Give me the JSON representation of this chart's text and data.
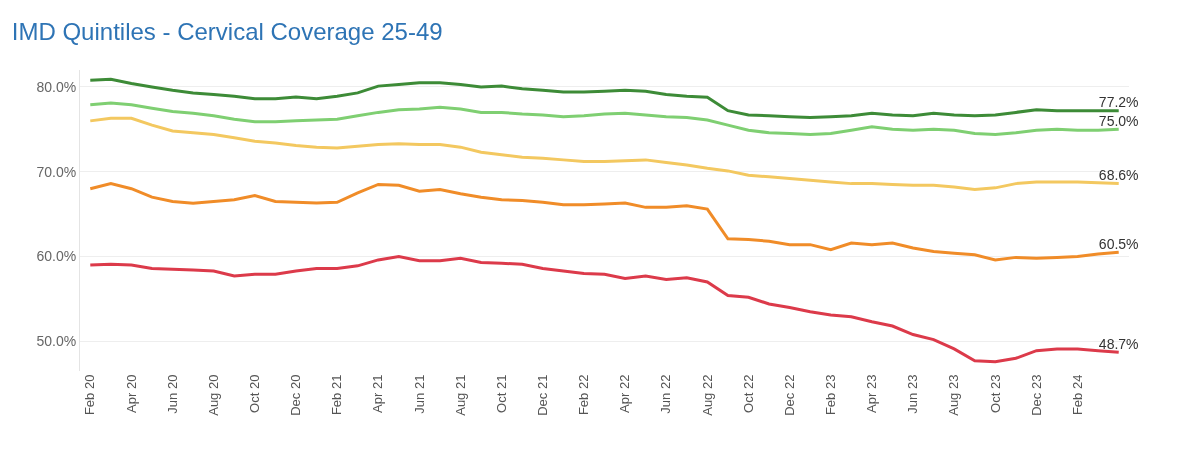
{
  "chart_data": {
    "type": "line",
    "title": "IMD Quintiles - Cervical Coverage 25-49",
    "categories": [
      "Feb 20",
      null,
      "Apr 20",
      null,
      "Jun 20",
      null,
      "Aug 20",
      null,
      "Oct 20",
      null,
      "Dec 20",
      null,
      "Feb 21",
      null,
      "Apr 21",
      null,
      "Jun 21",
      null,
      "Aug 21",
      null,
      "Oct 21",
      null,
      "Dec 21",
      null,
      "Feb 22",
      null,
      "Apr 22",
      null,
      "Jun 22",
      null,
      "Aug 22",
      null,
      "Oct 22",
      null,
      "Dec 22",
      null,
      "Feb 23",
      null,
      "Apr 23",
      null,
      "Jun 23",
      null,
      "Aug 23",
      null,
      "Oct 23",
      null,
      "Dec 23",
      null,
      "Feb 24",
      null,
      null
    ],
    "series": [
      {
        "color": "#3d8b37",
        "values": [
          80.8,
          80.9,
          80.4,
          80.0,
          79.6,
          79.3,
          79.1,
          78.9,
          78.6,
          78.6,
          78.8,
          78.6,
          78.9,
          79.3,
          80.1,
          80.3,
          80.5,
          80.5,
          80.3,
          80.0,
          80.1,
          79.8,
          79.6,
          79.4,
          79.4,
          79.5,
          79.6,
          79.5,
          79.1,
          78.9,
          78.8,
          77.2,
          76.7,
          76.6,
          76.5,
          76.4,
          76.5,
          76.6,
          76.9,
          76.7,
          76.6,
          76.9,
          76.7,
          76.6,
          76.7,
          77.0,
          77.3,
          77.2,
          77.2,
          77.2,
          77.2
        ],
        "value_labels": [
          null,
          null,
          null,
          null,
          null,
          null,
          null,
          null,
          null,
          null,
          null,
          null,
          null,
          null,
          null,
          null,
          null,
          null,
          null,
          null,
          null,
          null,
          null,
          null,
          null,
          null,
          null,
          null,
          null,
          null,
          null,
          null,
          null,
          null,
          null,
          null,
          null,
          null,
          null,
          null,
          null,
          null,
          null,
          null,
          null,
          null,
          null,
          null,
          null,
          null,
          "77.2%"
        ]
      },
      {
        "color": "#7fcf72",
        "values": [
          77.9,
          78.1,
          77.9,
          77.5,
          77.1,
          76.9,
          76.6,
          76.2,
          75.9,
          75.9,
          76.0,
          76.1,
          76.2,
          76.6,
          77.0,
          77.3,
          77.4,
          77.6,
          77.4,
          77.0,
          77.0,
          76.8,
          76.7,
          76.5,
          76.6,
          76.8,
          76.9,
          76.7,
          76.5,
          76.4,
          76.1,
          75.5,
          74.9,
          74.6,
          74.5,
          74.4,
          74.5,
          74.9,
          75.3,
          75.0,
          74.9,
          75.0,
          74.9,
          74.5,
          74.4,
          74.6,
          74.9,
          75.0,
          74.9,
          74.9,
          75.0
        ],
        "value_labels": [
          null,
          null,
          null,
          null,
          null,
          null,
          null,
          null,
          null,
          null,
          null,
          null,
          null,
          null,
          null,
          null,
          null,
          null,
          null,
          null,
          null,
          null,
          null,
          null,
          null,
          null,
          null,
          null,
          null,
          null,
          null,
          null,
          null,
          null,
          null,
          null,
          null,
          null,
          null,
          null,
          null,
          null,
          null,
          null,
          null,
          null,
          null,
          null,
          null,
          null,
          "75.0%"
        ]
      },
      {
        "color": "#f3c860",
        "values": [
          76.0,
          76.3,
          76.3,
          75.5,
          74.8,
          74.6,
          74.4,
          74.0,
          73.6,
          73.4,
          73.1,
          72.9,
          72.8,
          73.0,
          73.2,
          73.3,
          73.2,
          73.2,
          72.9,
          72.3,
          72.0,
          71.7,
          71.6,
          71.4,
          71.2,
          71.2,
          71.3,
          71.4,
          71.1,
          70.8,
          70.4,
          70.1,
          69.6,
          69.4,
          69.2,
          69.0,
          68.8,
          68.6,
          68.6,
          68.5,
          68.4,
          68.4,
          68.2,
          67.9,
          68.1,
          68.6,
          68.8,
          68.8,
          68.8,
          68.7,
          68.6
        ],
        "value_labels": [
          null,
          null,
          null,
          null,
          null,
          null,
          null,
          null,
          null,
          null,
          null,
          null,
          null,
          null,
          null,
          null,
          null,
          null,
          null,
          null,
          null,
          null,
          null,
          null,
          null,
          null,
          null,
          null,
          null,
          null,
          null,
          null,
          null,
          null,
          null,
          null,
          null,
          null,
          null,
          null,
          null,
          null,
          null,
          null,
          null,
          null,
          null,
          null,
          null,
          null,
          "68.6%"
        ]
      },
      {
        "color": "#f08c28",
        "values": [
          68.0,
          68.6,
          68.0,
          67.0,
          66.5,
          66.3,
          66.5,
          66.7,
          67.2,
          66.5,
          66.4,
          66.3,
          66.4,
          67.5,
          68.5,
          68.4,
          67.7,
          67.9,
          67.4,
          67.0,
          66.7,
          66.6,
          66.4,
          66.1,
          66.1,
          66.2,
          66.3,
          65.8,
          65.8,
          66.0,
          65.6,
          62.1,
          62.0,
          61.8,
          61.4,
          61.4,
          60.8,
          61.6,
          61.4,
          61.6,
          61.0,
          60.6,
          60.4,
          60.2,
          59.6,
          59.9,
          59.8,
          59.9,
          60.0,
          60.3,
          60.5
        ],
        "value_labels": [
          null,
          null,
          null,
          null,
          null,
          null,
          null,
          null,
          null,
          null,
          null,
          null,
          null,
          null,
          null,
          null,
          null,
          null,
          null,
          null,
          null,
          null,
          null,
          null,
          null,
          null,
          null,
          null,
          null,
          null,
          null,
          null,
          null,
          null,
          null,
          null,
          null,
          null,
          null,
          null,
          null,
          null,
          null,
          null,
          null,
          null,
          null,
          null,
          null,
          null,
          "60.5%"
        ]
      },
      {
        "color": "#dc3a4a",
        "values": [
          59.0,
          59.1,
          59.0,
          58.6,
          58.5,
          58.4,
          58.3,
          57.7,
          57.9,
          57.9,
          58.3,
          58.6,
          58.6,
          58.9,
          59.6,
          60.0,
          59.5,
          59.5,
          59.8,
          59.3,
          59.2,
          59.1,
          58.6,
          58.3,
          58.0,
          57.9,
          57.4,
          57.7,
          57.3,
          57.5,
          57.0,
          55.4,
          55.2,
          54.4,
          54.0,
          53.5,
          53.1,
          52.9,
          52.3,
          51.8,
          50.8,
          50.2,
          49.1,
          47.7,
          47.6,
          48.0,
          48.9,
          49.1,
          49.1,
          48.9,
          48.7
        ],
        "value_labels": [
          null,
          null,
          null,
          null,
          null,
          null,
          null,
          null,
          null,
          null,
          null,
          null,
          null,
          null,
          null,
          null,
          null,
          null,
          null,
          null,
          null,
          null,
          null,
          null,
          null,
          null,
          null,
          null,
          null,
          null,
          null,
          null,
          null,
          null,
          null,
          null,
          null,
          null,
          null,
          null,
          null,
          null,
          null,
          null,
          null,
          null,
          null,
          null,
          null,
          null,
          "48.7%"
        ]
      }
    ],
    "ylim": [
      46.5,
      82
    ],
    "yticks": [
      {
        "value": 50,
        "label": "50.0%"
      },
      {
        "value": 60,
        "label": "60.0%"
      },
      {
        "value": 70,
        "label": "70.0%"
      },
      {
        "value": 80,
        "label": "80.0%"
      }
    ],
    "grid": "y",
    "marker": "none",
    "line_style": "solid"
  }
}
